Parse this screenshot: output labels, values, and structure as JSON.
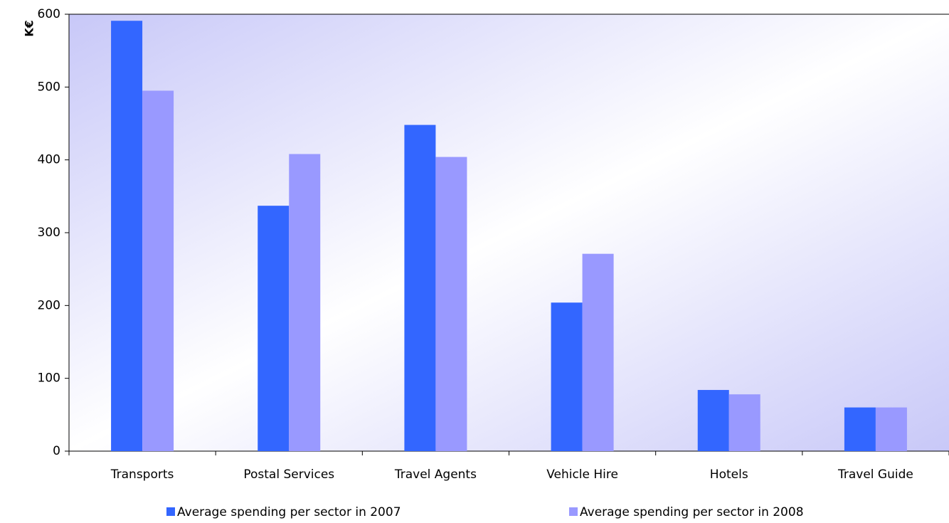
{
  "chart_data": {
    "type": "bar",
    "y_axis_label": "K€",
    "categories": [
      "Transports",
      "Postal Services",
      "Travel Agents",
      "Vehicle Hire",
      "Hotels",
      "Travel Guide"
    ],
    "series": [
      {
        "name": "Average spending per sector in 2007",
        "color": "#3366ff",
        "values": [
          591,
          337,
          448,
          204,
          84,
          60
        ]
      },
      {
        "name": "Average spending per sector in 2008",
        "color": "#9999ff",
        "values": [
          495,
          408,
          404,
          271,
          78,
          60
        ]
      }
    ],
    "ylim": [
      0,
      600
    ],
    "yticks": [
      0,
      100,
      200,
      300,
      400,
      500,
      600
    ],
    "grid": false
  }
}
